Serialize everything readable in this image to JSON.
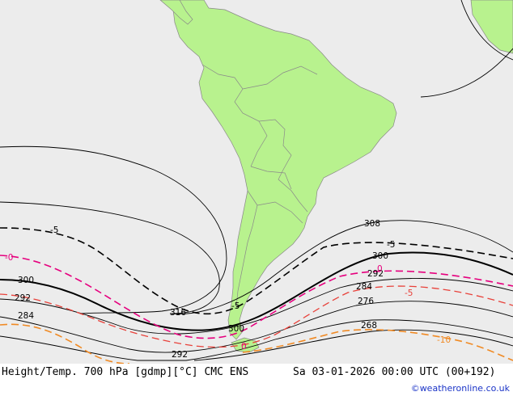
{
  "map": {
    "ocean_color": "#ececec",
    "land_color": "#b8f28e",
    "border_color": "#888888",
    "contour_labels": {
      "height": [
        "308",
        "300",
        "300",
        "300",
        "292",
        "292",
        "292",
        "284",
        "284",
        "276",
        "268",
        "316"
      ],
      "temperature": [
        "-5",
        "-5",
        "-5",
        "0",
        "-0",
        "0",
        "-5",
        "-10"
      ]
    },
    "colors": {
      "height_line": "#000000",
      "temp_minus5": "#000000",
      "temp_0": "#e6007e",
      "temp_minus5_red": "#e8413a",
      "temp_minus10": "#f08a24"
    }
  },
  "footer": {
    "title": "Height/Temp. 700 hPa [gdmp][°C] CMC ENS",
    "date": "Sa 03-01-2026 00:00 UTC (00+192)",
    "credit": "©weatheronline.co.uk"
  }
}
